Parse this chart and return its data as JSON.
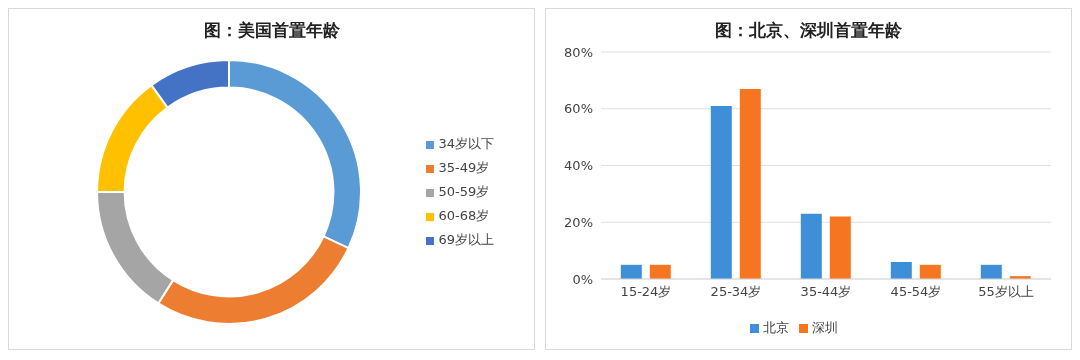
{
  "chart_data": [
    {
      "type": "donut",
      "title": "图：美国首置年龄",
      "categories": [
        "34岁以下",
        "35-49岁",
        "50-59岁",
        "60-68岁",
        "69岁以上"
      ],
      "values": [
        32,
        27,
        16,
        15,
        10
      ],
      "colors": [
        "#5b9bd5",
        "#ed7d31",
        "#a5a5a5",
        "#ffc000",
        "#4472c4"
      ],
      "legend": "right"
    },
    {
      "type": "bar",
      "title": "图：北京、深圳首置年龄",
      "categories": [
        "15-24岁",
        "25-34岁",
        "35-44岁",
        "45-54岁",
        "55岁以上"
      ],
      "series": [
        {
          "name": "北京",
          "color": "#3f8fd8",
          "values": [
            5,
            61,
            23,
            6,
            5
          ]
        },
        {
          "name": "深圳",
          "color": "#f57520",
          "values": [
            5,
            67,
            22,
            5,
            1
          ]
        }
      ],
      "ylim": [
        0,
        80
      ],
      "yticks": [
        {
          "value": 0,
          "label": "0%"
        },
        {
          "value": 20,
          "label": "20%"
        },
        {
          "value": 40,
          "label": "40%"
        },
        {
          "value": 60,
          "label": "60%"
        },
        {
          "value": 80,
          "label": "80%"
        }
      ],
      "grid": "y",
      "legend": "bottom"
    }
  ]
}
